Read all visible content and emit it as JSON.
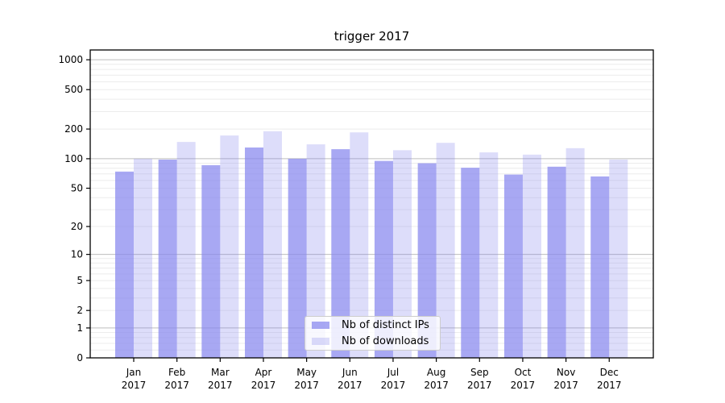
{
  "chart_data": {
    "type": "bar",
    "title": "trigger 2017",
    "categories": [
      "Jan",
      "Feb",
      "Mar",
      "Apr",
      "May",
      "Jun",
      "Jul",
      "Aug",
      "Sep",
      "Oct",
      "Nov",
      "Dec"
    ],
    "category_year": "2017",
    "series": [
      {
        "name": "Nb of distinct IPs",
        "color": "#8686ee",
        "opacity": 0.72,
        "values": [
          74,
          98,
          86,
          130,
          100,
          125,
          95,
          90,
          81,
          69,
          83,
          66
        ]
      },
      {
        "name": "Nb of downloads",
        "color": "#8686ee",
        "opacity": 0.28,
        "values": [
          100,
          148,
          172,
          190,
          140,
          185,
          122,
          145,
          116,
          110,
          128,
          98
        ]
      }
    ],
    "xlabel": "",
    "ylabel": "",
    "yscale": "symlog",
    "ylim": [
      0,
      1255
    ],
    "yticks": [
      0,
      1,
      2,
      5,
      10,
      20,
      50,
      100,
      200,
      500,
      1000
    ],
    "major_gridlines": [
      1,
      10,
      100,
      1000
    ],
    "minor_gridlines": [
      0.2,
      0.4,
      0.6,
      0.8,
      2,
      3,
      4,
      5,
      6,
      7,
      8,
      9,
      20,
      30,
      40,
      50,
      60,
      70,
      80,
      90,
      200,
      300,
      400,
      500,
      600,
      700,
      800,
      900
    ],
    "grid": true,
    "legend_position": "lower center"
  },
  "colors": {
    "axis": "#000000",
    "tick_text": "#000000",
    "grid_minor": "#ececec",
    "grid_major": "#bdbdbd",
    "background": "#ffffff",
    "legend_border": "#cccccc"
  }
}
